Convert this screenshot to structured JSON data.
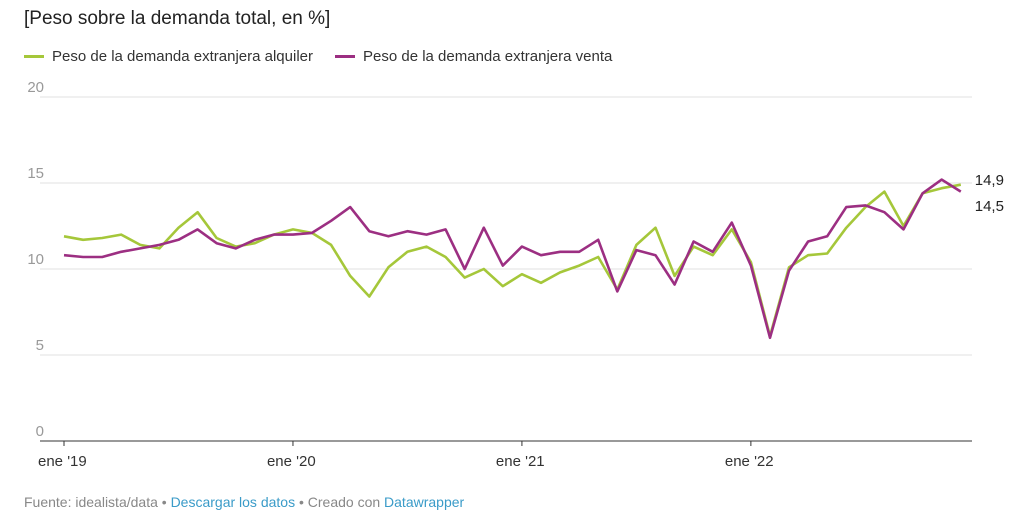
{
  "chart_data": {
    "type": "line",
    "title": "[Peso sobre la demanda total, en %]",
    "xlabel": "",
    "ylabel": "",
    "ylim": [
      0,
      20
    ],
    "yticks": [
      "0",
      "5",
      "10",
      "15",
      "20"
    ],
    "ytick_values": [
      0,
      5,
      10,
      15,
      20
    ],
    "xtick_labels": [
      "ene '19",
      "ene '20",
      "ene '21",
      "ene '22"
    ],
    "xtick_index": [
      0,
      12,
      24,
      36
    ],
    "x_description": "monthly, Jan 2019 - Dec 2022",
    "legend_position": "top-left",
    "series": [
      {
        "name": "Peso de la demanda extranjera alquiler",
        "color": "#a5c73a",
        "end_label": "14,9",
        "values": [
          11.9,
          11.7,
          11.8,
          12.0,
          11.4,
          11.2,
          12.4,
          13.3,
          11.8,
          11.3,
          11.5,
          12.0,
          12.3,
          12.1,
          11.4,
          9.6,
          8.4,
          10.1,
          11.0,
          11.3,
          10.7,
          9.5,
          10.0,
          9.0,
          9.7,
          9.2,
          9.8,
          10.2,
          10.7,
          8.8,
          11.4,
          12.4,
          9.6,
          11.3,
          10.8,
          12.3,
          10.4,
          6.1,
          10.1,
          10.8,
          10.9,
          12.4,
          13.6,
          14.5,
          12.5,
          14.4,
          14.7,
          14.9
        ]
      },
      {
        "name": "Peso de la demanda extranjera venta",
        "color": "#9c2f82",
        "end_label": "14,5",
        "values": [
          10.8,
          10.7,
          10.7,
          11.0,
          11.2,
          11.4,
          11.7,
          12.3,
          11.5,
          11.2,
          11.7,
          12.0,
          12.0,
          12.1,
          12.8,
          13.6,
          12.2,
          11.9,
          12.2,
          12.0,
          12.3,
          10.0,
          12.4,
          10.2,
          11.3,
          10.8,
          11.0,
          11.0,
          11.7,
          8.7,
          11.1,
          10.8,
          9.1,
          11.6,
          11.0,
          12.7,
          10.2,
          6.0,
          9.9,
          11.6,
          11.9,
          13.6,
          13.7,
          13.3,
          12.3,
          14.4,
          15.2,
          14.5
        ]
      }
    ]
  },
  "footer": {
    "source": "Fuente: idealista/data",
    "sep1": " • ",
    "download": "Descargar los datos",
    "sep2": " • Creado con ",
    "tool": "Datawrapper"
  }
}
